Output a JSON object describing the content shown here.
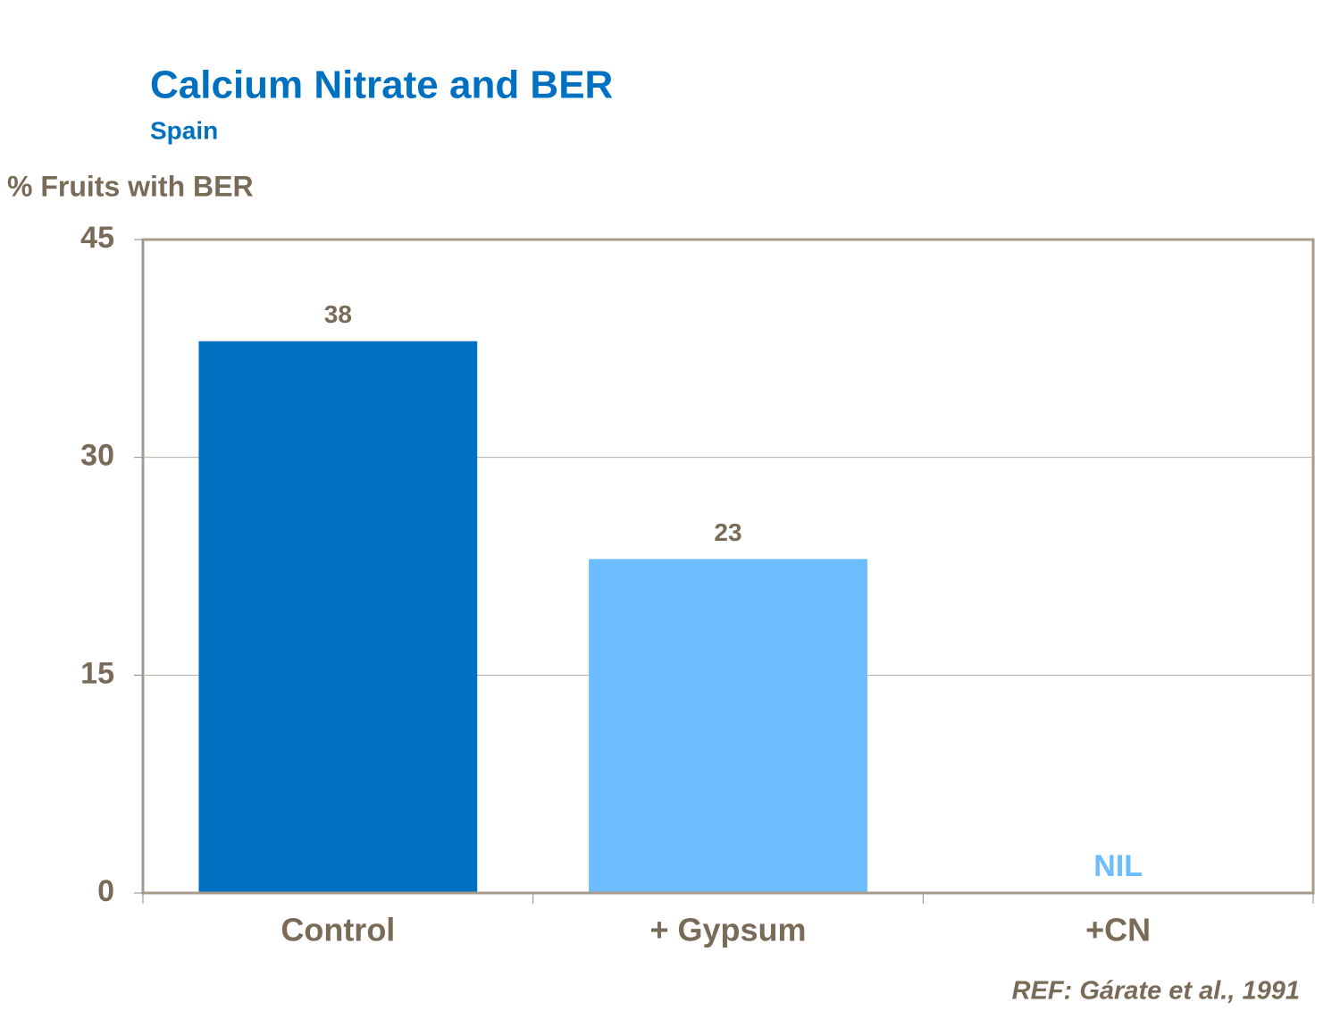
{
  "chart_data": {
    "type": "bar",
    "title": "Calcium Nitrate and BER",
    "subtitle": "Spain",
    "y_label": "% Fruits with BER",
    "categories": [
      "Control",
      "+ Gypsum",
      "+CN"
    ],
    "values": [
      38,
      23,
      0
    ],
    "value_labels": [
      "38",
      "23",
      "NIL"
    ],
    "colors": [
      "#0070c0",
      "#6bbdff",
      "#6bbdff"
    ],
    "value_label_colors": [
      "#7a6a58",
      "#7a6a58",
      "#6bbdff"
    ],
    "ylim": [
      0,
      45
    ],
    "yticks": [
      0,
      15,
      30,
      45
    ],
    "grid": true,
    "note": "REF: Gárate et al., 1991"
  }
}
